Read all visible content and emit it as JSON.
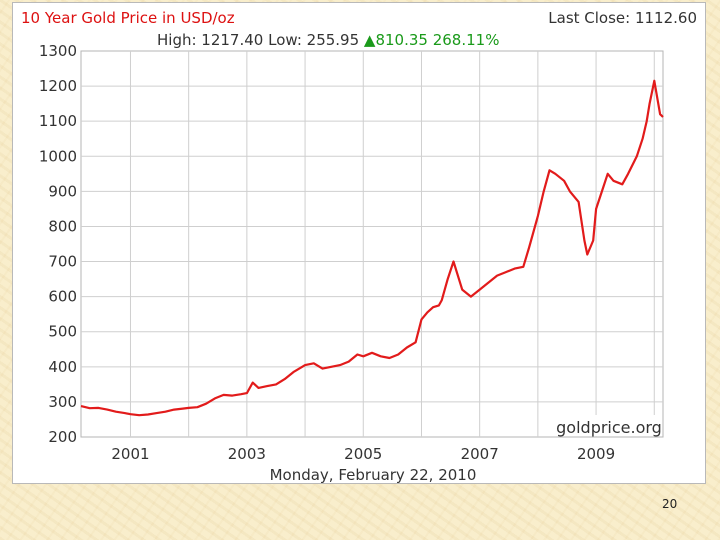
{
  "slide": {
    "page_number": "20"
  },
  "chart_data": {
    "type": "line",
    "title": "10 Year Gold Price in USD/oz",
    "last_close": "Last Close: 1112.60",
    "stats": {
      "high": "High: 1217.40",
      "low": "Low: 255.95",
      "change_icon": "up-triangle-icon",
      "change": "810.35 268.11%"
    },
    "date_label": "Monday, February 22, 2010",
    "watermark": "goldprice.org",
    "xlabel": "",
    "ylabel": "",
    "y_ticks": [
      "1300",
      "1200",
      "1100",
      "1000",
      "900",
      "800",
      "700",
      "600",
      "500",
      "400",
      "300",
      "200"
    ],
    "x_ticks": [
      "2001",
      "2003",
      "2005",
      "2007",
      "2009"
    ],
    "ylim": [
      200,
      1300
    ],
    "xlim": [
      2000.15,
      2010.15
    ],
    "grid": true,
    "line_color": "#e21b1b",
    "series": [
      {
        "x": [
          2000.15,
          2000.3,
          2000.45,
          2000.6,
          2000.75,
          2000.9,
          2001.0,
          2001.15,
          2001.3,
          2001.45,
          2001.6,
          2001.75,
          2001.9,
          2002.0,
          2002.15,
          2002.3,
          2002.45,
          2002.6,
          2002.75,
          2002.9,
          2003.0,
          2003.1,
          2003.2,
          2003.35,
          2003.5,
          2003.65,
          2003.8,
          2003.95,
          2004.0,
          2004.15,
          2004.3,
          2004.45,
          2004.6,
          2004.75,
          2004.9,
          2005.0,
          2005.15,
          2005.3,
          2005.45,
          2005.6,
          2005.75,
          2005.9,
          2006.0,
          2006.1,
          2006.2,
          2006.3,
          2006.35,
          2006.45,
          2006.55,
          2006.7,
          2006.85,
          2007.0,
          2007.15,
          2007.3,
          2007.45,
          2007.6,
          2007.75,
          2007.85,
          2008.0,
          2008.1,
          2008.2,
          2008.3,
          2008.45,
          2008.55,
          2008.7,
          2008.8,
          2008.85,
          2008.95,
          2009.0,
          2009.1,
          2009.2,
          2009.3,
          2009.45,
          2009.55,
          2009.7,
          2009.8,
          2009.87,
          2009.92,
          2010.0,
          2010.1,
          2010.15
        ],
        "y": [
          288,
          282,
          283,
          278,
          272,
          268,
          265,
          262,
          264,
          268,
          272,
          278,
          281,
          283,
          285,
          295,
          310,
          320,
          318,
          322,
          325,
          355,
          340,
          345,
          350,
          365,
          385,
          400,
          405,
          410,
          395,
          400,
          405,
          415,
          435,
          430,
          440,
          430,
          425,
          435,
          455,
          470,
          535,
          555,
          570,
          575,
          590,
          650,
          700,
          620,
          600,
          620,
          640,
          660,
          670,
          680,
          685,
          740,
          830,
          900,
          960,
          950,
          930,
          900,
          870,
          760,
          720,
          760,
          850,
          900,
          950,
          930,
          920,
          950,
          1000,
          1050,
          1100,
          1150,
          1215,
          1120,
          1112
        ]
      }
    ]
  }
}
